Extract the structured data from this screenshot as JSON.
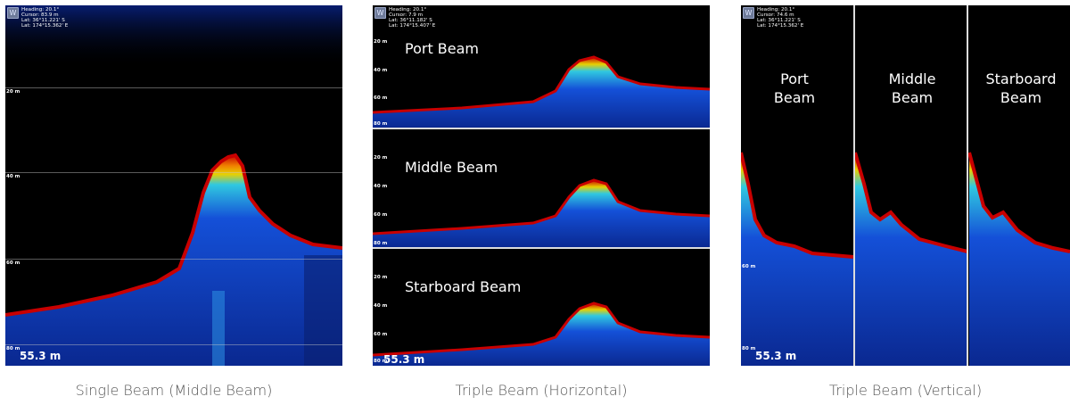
{
  "panels": [
    {
      "caption": "Single Beam (Middle Beam)",
      "info": [
        "Heading: 20.1°",
        "Cursor: 83.9 m",
        "Lat: 36°11.221' S",
        "Lat: 174°15.362' E"
      ],
      "ticks": [
        "20 m",
        "40 m",
        "60 m",
        "80 m"
      ],
      "depth": "55.3 m"
    },
    {
      "caption": "Triple Beam (Horizontal)",
      "info": [
        "Heading: 20.1°",
        "Cursor: 7.9 m",
        "Lat: 36°11.182' S",
        "Lat: 174°15.407' E"
      ],
      "sub_ticks": [
        "20 m",
        "40 m",
        "60 m",
        "80 m"
      ],
      "beams": [
        "Port Beam",
        "Middle Beam",
        "Starboard Beam"
      ],
      "depth": "55.3 m"
    },
    {
      "caption": "Triple Beam (Vertical)",
      "info": [
        "Heading: 20.1°",
        "Cursor: 74.6 m",
        "Lat: 36°11.221' S",
        "Lat: 174°15.362' E"
      ],
      "ticks": [
        "60 m",
        "80 m"
      ],
      "beams": [
        {
          "line1": "Port",
          "line2": "Beam"
        },
        {
          "line1": "Middle",
          "line2": "Beam"
        },
        {
          "line1": "Starboard",
          "line2": "Beam"
        }
      ],
      "depth": "55.3 m"
    }
  ],
  "colors": {
    "water": "#000000",
    "echo_strong": "#c80000",
    "echo_mid": "#f0c800",
    "echo_weak": "#0a3cc8",
    "caption": "#555555"
  }
}
